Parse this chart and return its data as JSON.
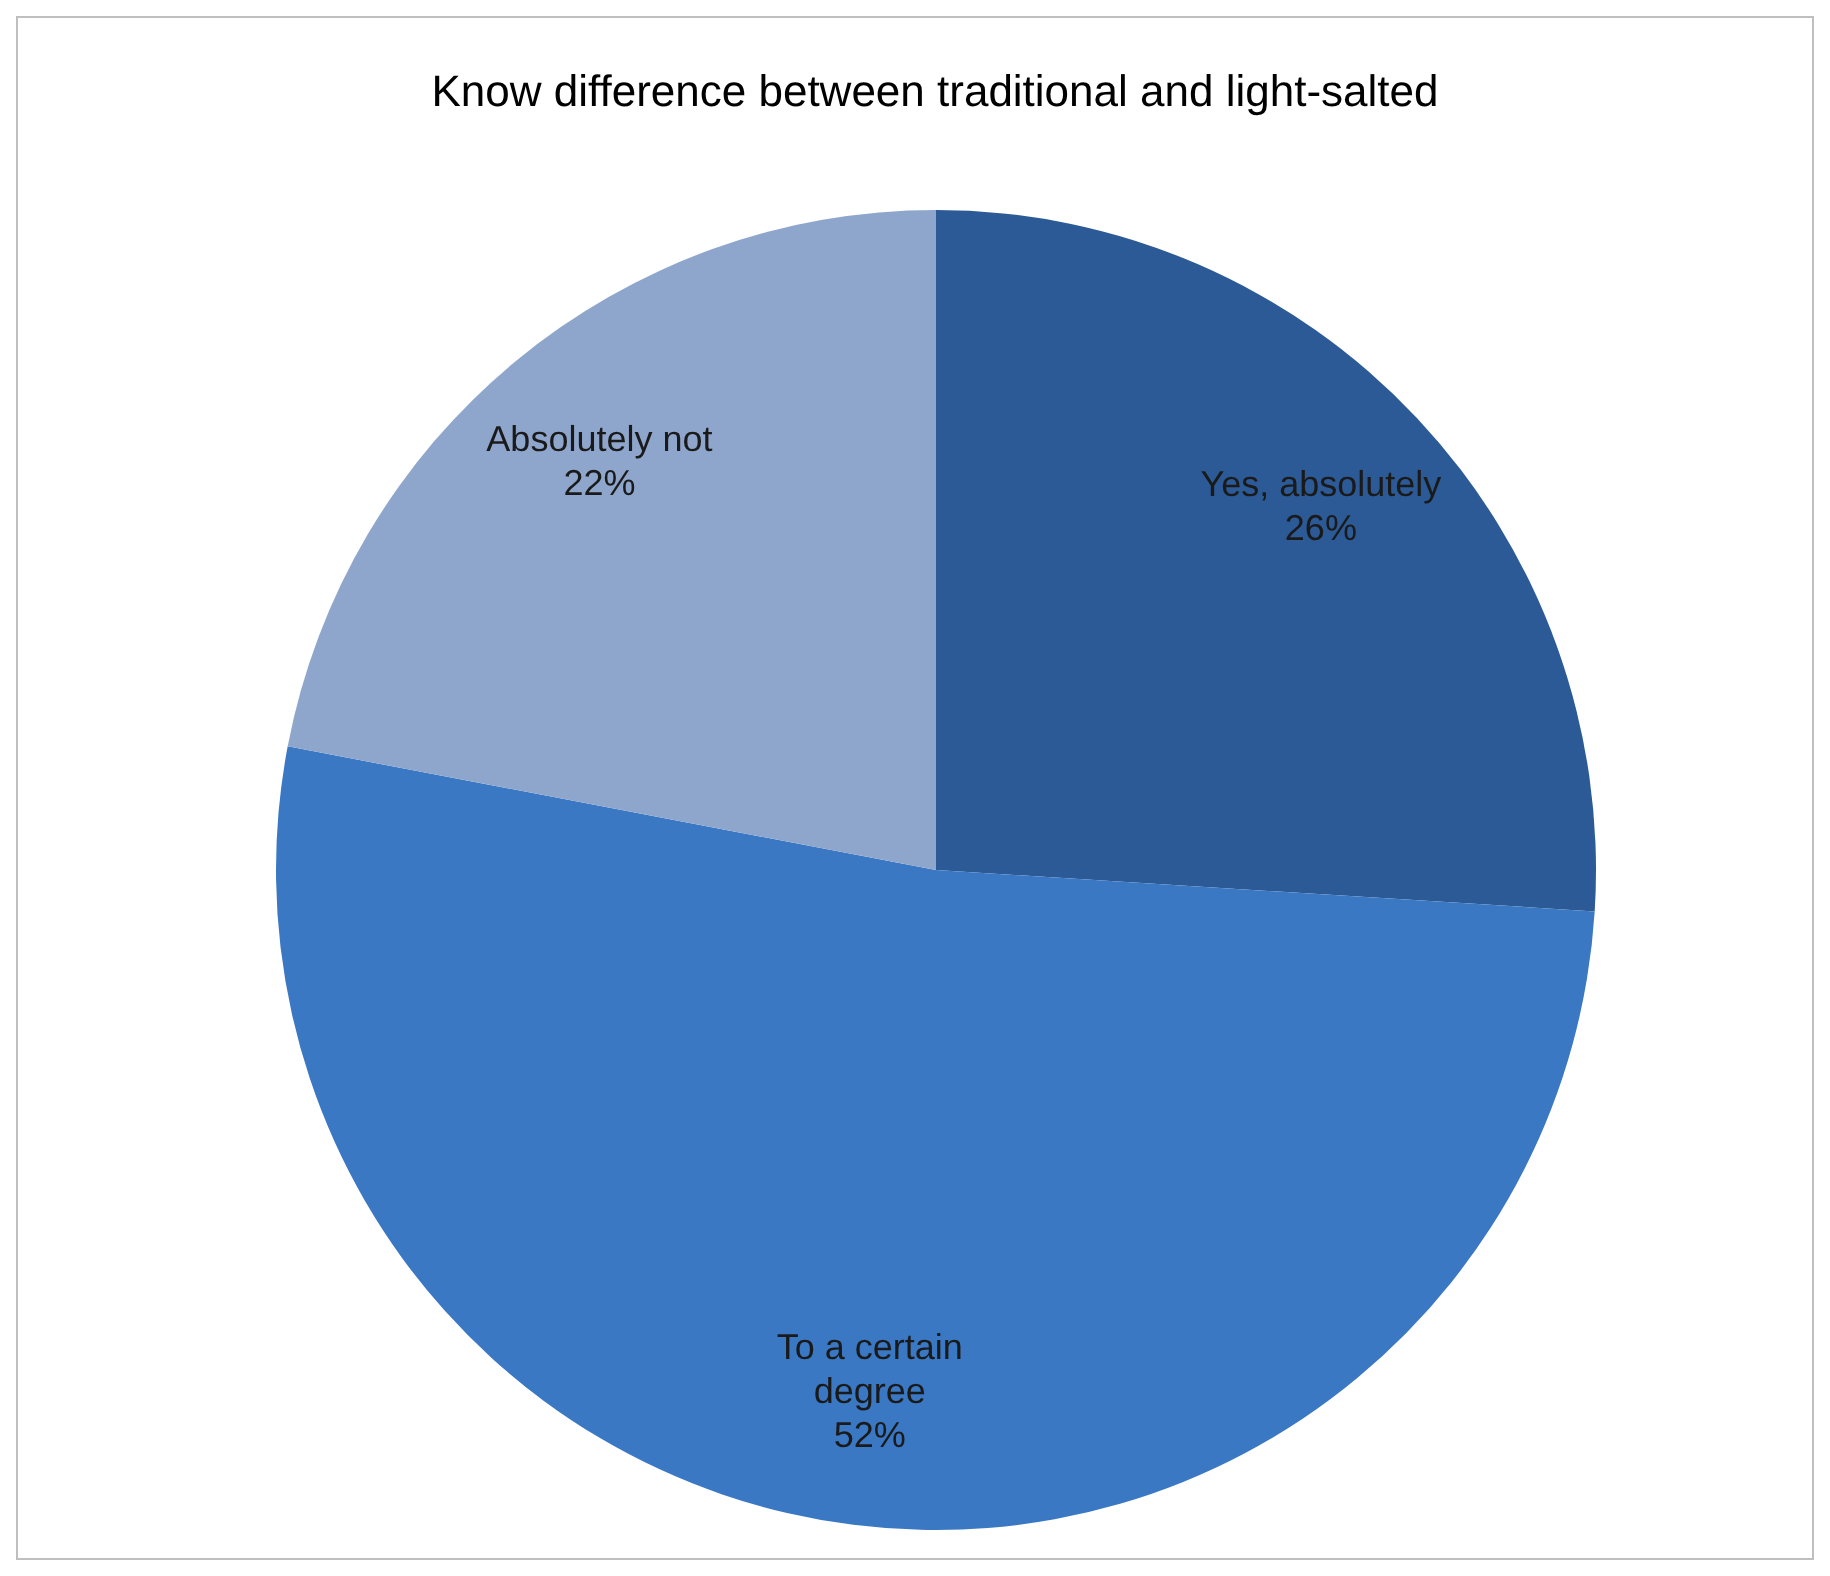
{
  "chart_data": {
    "type": "pie",
    "title": "Know difference between traditional and light-salted",
    "categories": [
      "Yes, absolutely",
      "To a certain degree",
      "Absolutely not"
    ],
    "values": [
      26,
      52,
      22
    ],
    "value_labels": [
      "26%",
      "52%",
      "22%"
    ],
    "colors": [
      "#2b5a96",
      "#3a78c4",
      "#8fa6cc"
    ]
  }
}
